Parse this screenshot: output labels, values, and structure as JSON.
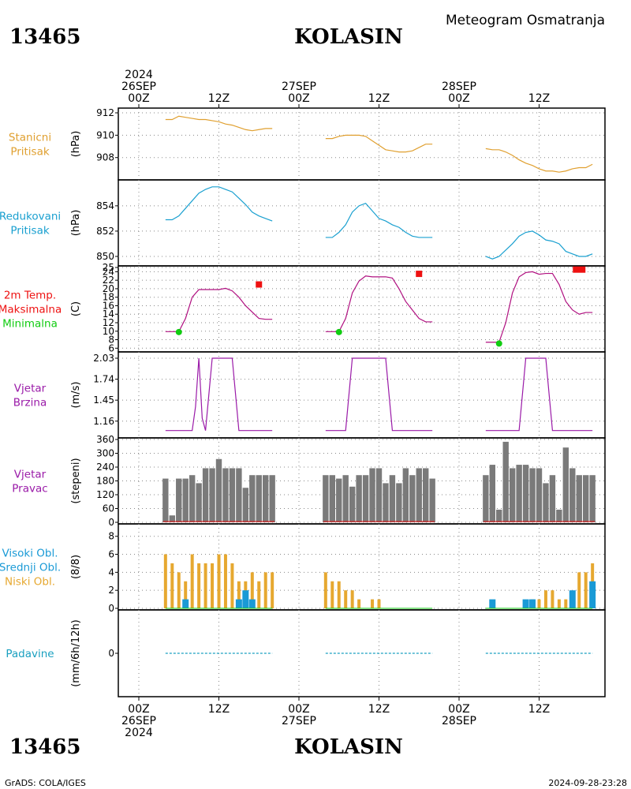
{
  "header": {
    "station_id": "13465",
    "station_name": "KOLASIN",
    "title": "Meteogram Osmatranja",
    "date_top_year": "2024",
    "footer_left": "GrADS: COLA/IGES",
    "footer_right": "2024-09-28-23:28"
  },
  "colors": {
    "pressure": "#e0a030",
    "reduced": "#1aa0d0",
    "temp": "#b01080",
    "max": "#ee1111",
    "min": "#11cc11",
    "wind": "#9a1aa8",
    "dir": "#7a7a7a",
    "low_cloud": "#e6a830",
    "high_cloud": "#1a9ad6",
    "precip": "#1aa0c0"
  },
  "time_axis": {
    "top_labels": [
      {
        "t": 0,
        "lines": [
          "2024",
          "26SEP",
          "00Z"
        ]
      },
      {
        "t": 12,
        "lines": [
          "12Z"
        ]
      },
      {
        "t": 24,
        "lines": [
          "27SEP",
          "00Z"
        ]
      },
      {
        "t": 36,
        "lines": [
          "12Z"
        ]
      },
      {
        "t": 48,
        "lines": [
          "28SEP",
          "00Z"
        ]
      },
      {
        "t": 60,
        "lines": [
          "12Z"
        ]
      }
    ],
    "bottom_labels": [
      {
        "t": 0,
        "lines": [
          "00Z",
          "26SEP",
          "2024"
        ]
      },
      {
        "t": 12,
        "lines": [
          "12Z"
        ]
      },
      {
        "t": 24,
        "lines": [
          "00Z",
          "27SEP"
        ]
      },
      {
        "t": 36,
        "lines": [
          "12Z"
        ]
      },
      {
        "t": 48,
        "lines": [
          "00Z",
          "28SEP"
        ]
      },
      {
        "t": 60,
        "lines": [
          "12Z"
        ]
      }
    ]
  },
  "chart_data": [
    {
      "type": "line",
      "name": "stanicni_pritisak",
      "label_lines": [
        "Stanicni",
        "Pritisak"
      ],
      "unit": "(hPa)",
      "ylim": [
        906.5,
        912
      ],
      "yticks": [
        908,
        910,
        912
      ],
      "segments": [
        {
          "x": [
            4,
            5,
            6,
            7,
            8,
            9,
            10,
            11,
            12,
            13,
            14,
            15,
            16,
            17,
            18,
            19,
            20
          ],
          "y": [
            911.4,
            911.4,
            911.7,
            911.6,
            911.5,
            911.4,
            911.4,
            911.3,
            911.2,
            911.0,
            910.9,
            910.7,
            910.5,
            910.4,
            910.5,
            910.6,
            910.6
          ]
        },
        {
          "x": [
            28,
            29,
            30,
            31,
            32,
            33,
            34,
            35,
            36,
            37,
            38,
            39,
            40,
            41,
            42,
            43,
            44
          ],
          "y": [
            909.7,
            909.7,
            909.9,
            910.0,
            910.0,
            910.0,
            909.9,
            909.5,
            909.1,
            908.7,
            908.6,
            908.5,
            908.5,
            908.6,
            908.9,
            909.2,
            909.2
          ]
        },
        {
          "x": [
            52,
            53,
            54,
            55,
            56,
            57,
            58,
            59,
            60,
            61,
            62,
            63,
            64,
            65,
            66,
            67,
            68
          ],
          "y": [
            908.8,
            908.7,
            908.7,
            908.5,
            908.2,
            907.8,
            907.5,
            907.3,
            907.0,
            906.8,
            906.8,
            906.7,
            906.8,
            907.0,
            907.1,
            907.1,
            907.4
          ]
        }
      ]
    },
    {
      "type": "line",
      "name": "redukovani_pritisak",
      "label_lines": [
        "Redukovani",
        "Pritisak"
      ],
      "unit": "(hPa)",
      "ylim": [
        849.5,
        855.8
      ],
      "yticks": [
        850,
        852,
        854
      ],
      "segments": [
        {
          "x": [
            4,
            5,
            6,
            7,
            8,
            9,
            10,
            11,
            12,
            13,
            14,
            15,
            16,
            17,
            18,
            19,
            20
          ],
          "y": [
            852.9,
            852.9,
            853.2,
            853.8,
            854.4,
            855.0,
            855.3,
            855.5,
            855.5,
            855.3,
            855.1,
            854.6,
            854.1,
            853.5,
            853.2,
            853.0,
            852.8
          ]
        },
        {
          "x": [
            28,
            29,
            30,
            31,
            32,
            33,
            34,
            35,
            36,
            37,
            38,
            39,
            40,
            41,
            42,
            43,
            44
          ],
          "y": [
            851.5,
            851.5,
            851.9,
            852.5,
            853.5,
            854.0,
            854.2,
            853.6,
            853.0,
            852.8,
            852.5,
            852.3,
            851.9,
            851.6,
            851.5,
            851.5,
            851.5
          ]
        },
        {
          "x": [
            52,
            53,
            54,
            55,
            56,
            57,
            58,
            59,
            60,
            61,
            62,
            63,
            64,
            65,
            66,
            67,
            68
          ],
          "y": [
            850.0,
            849.8,
            850.0,
            850.5,
            851.0,
            851.6,
            851.9,
            852.0,
            851.7,
            851.3,
            851.2,
            851.0,
            850.4,
            850.2,
            850.0,
            850.0,
            850.2
          ]
        }
      ]
    },
    {
      "type": "line",
      "name": "temperatura_2m",
      "label_lines": [
        "2m Temp.",
        "Maksimalna",
        "Minimalna"
      ],
      "label_colors": [
        "max",
        "max",
        "min"
      ],
      "unit": "(C)",
      "ylim": [
        5.5,
        25
      ],
      "yticks": [
        6,
        8,
        10,
        12,
        14,
        16,
        18,
        20,
        22,
        24,
        25
      ],
      "segments": [
        {
          "x": [
            4,
            5,
            6,
            7,
            8,
            9,
            10,
            11,
            12,
            13,
            14,
            15,
            16,
            17,
            18,
            19,
            20
          ],
          "y": [
            9.9,
            9.9,
            9.9,
            13.0,
            18.0,
            19.8,
            19.8,
            19.8,
            19.8,
            20.1,
            19.5,
            18.0,
            16.0,
            14.5,
            13.0,
            12.8,
            12.8
          ]
        },
        {
          "x": [
            28,
            29,
            30,
            31,
            32,
            33,
            34,
            35,
            36,
            37,
            38,
            39,
            40,
            41,
            42,
            43,
            44
          ],
          "y": [
            9.9,
            9.9,
            9.9,
            13.0,
            19.0,
            21.8,
            23.0,
            22.8,
            22.8,
            22.8,
            22.5,
            20.0,
            17.0,
            15.0,
            13.0,
            12.2,
            12.2
          ]
        },
        {
          "x": [
            52,
            53,
            54,
            55,
            56,
            57,
            58,
            59,
            60,
            61,
            62,
            63,
            64,
            65,
            66,
            67,
            68
          ],
          "y": [
            7.4,
            7.4,
            7.4,
            12.0,
            19.0,
            22.8,
            23.8,
            24.0,
            23.4,
            23.6,
            23.6,
            21.0,
            17.0,
            15.0,
            14.0,
            14.4,
            14.4
          ]
        }
      ],
      "maxima": {
        "x": [
          18,
          42,
          66
        ],
        "y": [
          21.0,
          23.5,
          24.5
        ]
      },
      "minima": {
        "x": [
          6,
          30,
          54
        ],
        "y": [
          9.8,
          9.8,
          7.1
        ]
      }
    },
    {
      "type": "line",
      "name": "vjetar_brzina",
      "label_lines": [
        "Vjetar",
        "Brzina"
      ],
      "unit": "(m/s)",
      "ylim": [
        0.95,
        2.03
      ],
      "yticks": [
        1.16,
        1.45,
        1.74,
        2.03
      ],
      "ytick_labels": [
        "1.16",
        "1.45",
        "1.74",
        "2.03"
      ],
      "segments": [
        {
          "x": [
            4,
            5,
            6,
            7,
            8,
            8.5,
            9,
            9.5,
            10,
            11,
            12,
            13,
            14,
            15,
            16,
            17,
            18,
            19,
            20
          ],
          "y": [
            1.03,
            1.03,
            1.03,
            1.03,
            1.03,
            1.36,
            2.03,
            1.2,
            1.03,
            2.03,
            2.03,
            2.03,
            2.03,
            1.03,
            1.03,
            1.03,
            1.03,
            1.03,
            1.03
          ]
        },
        {
          "x": [
            28,
            29,
            30,
            31,
            32,
            33,
            34,
            35,
            36,
            37,
            38,
            39,
            40,
            41,
            42,
            43,
            44
          ],
          "y": [
            1.03,
            1.03,
            1.03,
            1.03,
            2.03,
            2.03,
            2.03,
            2.03,
            2.03,
            2.03,
            1.03,
            1.03,
            1.03,
            1.03,
            1.03,
            1.03,
            1.03
          ]
        },
        {
          "x": [
            52,
            53,
            54,
            55,
            56,
            57,
            58,
            59,
            60,
            61,
            62,
            63,
            64,
            65,
            66,
            67,
            68
          ],
          "y": [
            1.03,
            1.03,
            1.03,
            1.03,
            1.03,
            1.03,
            2.03,
            2.03,
            2.03,
            2.03,
            1.03,
            1.03,
            1.03,
            1.03,
            1.03,
            1.03,
            1.03
          ]
        }
      ]
    },
    {
      "type": "bar",
      "name": "vjetar_pravac",
      "label_lines": [
        "Vjetar",
        "Pravac"
      ],
      "unit": "(stepeni)",
      "ylim": [
        0,
        360
      ],
      "yticks": [
        0,
        60,
        120,
        180,
        240,
        300,
        360
      ],
      "x": [
        4,
        5,
        6,
        7,
        8,
        9,
        10,
        11,
        12,
        13,
        14,
        15,
        16,
        17,
        18,
        19,
        20,
        28,
        29,
        30,
        31,
        32,
        33,
        34,
        35,
        36,
        37,
        38,
        39,
        40,
        41,
        42,
        43,
        44,
        52,
        53,
        54,
        55,
        56,
        57,
        58,
        59,
        60,
        61,
        62,
        63,
        64,
        65,
        66,
        67,
        68
      ],
      "values": [
        190,
        30,
        190,
        190,
        205,
        170,
        235,
        235,
        275,
        235,
        235,
        235,
        150,
        205,
        205,
        205,
        205,
        205,
        205,
        190,
        205,
        155,
        205,
        205,
        235,
        235,
        170,
        205,
        170,
        235,
        205,
        235,
        235,
        190,
        205,
        250,
        55,
        350,
        235,
        250,
        250,
        235,
        235,
        170,
        205,
        55,
        325,
        235,
        205,
        205,
        205
      ]
    },
    {
      "type": "bar",
      "name": "oblacnost",
      "label_lines": [
        "Visoki Obl.",
        "Srednji Obl.",
        "Niski Obl."
      ],
      "label_colors": [
        "high_cloud",
        "high_cloud",
        "low_cloud"
      ],
      "unit": "(8/8)",
      "ylim": [
        0,
        8.5
      ],
      "yticks": [
        0,
        2,
        4,
        6,
        8
      ],
      "x": [
        4,
        5,
        6,
        7,
        8,
        9,
        10,
        11,
        12,
        13,
        14,
        15,
        16,
        17,
        18,
        19,
        20,
        28,
        29,
        30,
        31,
        32,
        33,
        34,
        35,
        36,
        37,
        38,
        39,
        40,
        41,
        42,
        43,
        44,
        52,
        53,
        54,
        55,
        56,
        57,
        58,
        59,
        60,
        61,
        62,
        63,
        64,
        65,
        66,
        67,
        68
      ],
      "series": [
        {
          "name": "Niski Obl.",
          "color": "low_cloud",
          "values": [
            6,
            5,
            4,
            3,
            6,
            5,
            5,
            5,
            6,
            6,
            5,
            3,
            3,
            4,
            3,
            4,
            4,
            4,
            3,
            3,
            2,
            2,
            1,
            0,
            1,
            1,
            0,
            0,
            0,
            0,
            0,
            0,
            0,
            0,
            0,
            0,
            0,
            0,
            0,
            0,
            0,
            1,
            1,
            2,
            2,
            1,
            1,
            1,
            4,
            4,
            5
          ]
        },
        {
          "name": "Visoki Obl.",
          "color": "high_cloud",
          "values": [
            0,
            0,
            0,
            1,
            0,
            0,
            0,
            0,
            0,
            0,
            0,
            1,
            2,
            1,
            0,
            0,
            0,
            0,
            0,
            0,
            0,
            0,
            0,
            0,
            0,
            0,
            0,
            0,
            0,
            0,
            0,
            0,
            0,
            0,
            0,
            1,
            0,
            0,
            0,
            0,
            1,
            1,
            0,
            0,
            0,
            0,
            0,
            2,
            0,
            0,
            3
          ]
        }
      ]
    },
    {
      "type": "line",
      "name": "padavine",
      "label_lines": [
        "Padavine"
      ],
      "unit": "(mm/6h/12h)",
      "ylim": [
        -1,
        1
      ],
      "yticks": [
        0
      ],
      "segments": [
        {
          "x": [
            4,
            20
          ],
          "y": [
            0,
            0
          ]
        },
        {
          "x": [
            28,
            44
          ],
          "y": [
            0,
            0
          ]
        },
        {
          "x": [
            52,
            68
          ],
          "y": [
            0,
            0
          ]
        }
      ]
    }
  ]
}
